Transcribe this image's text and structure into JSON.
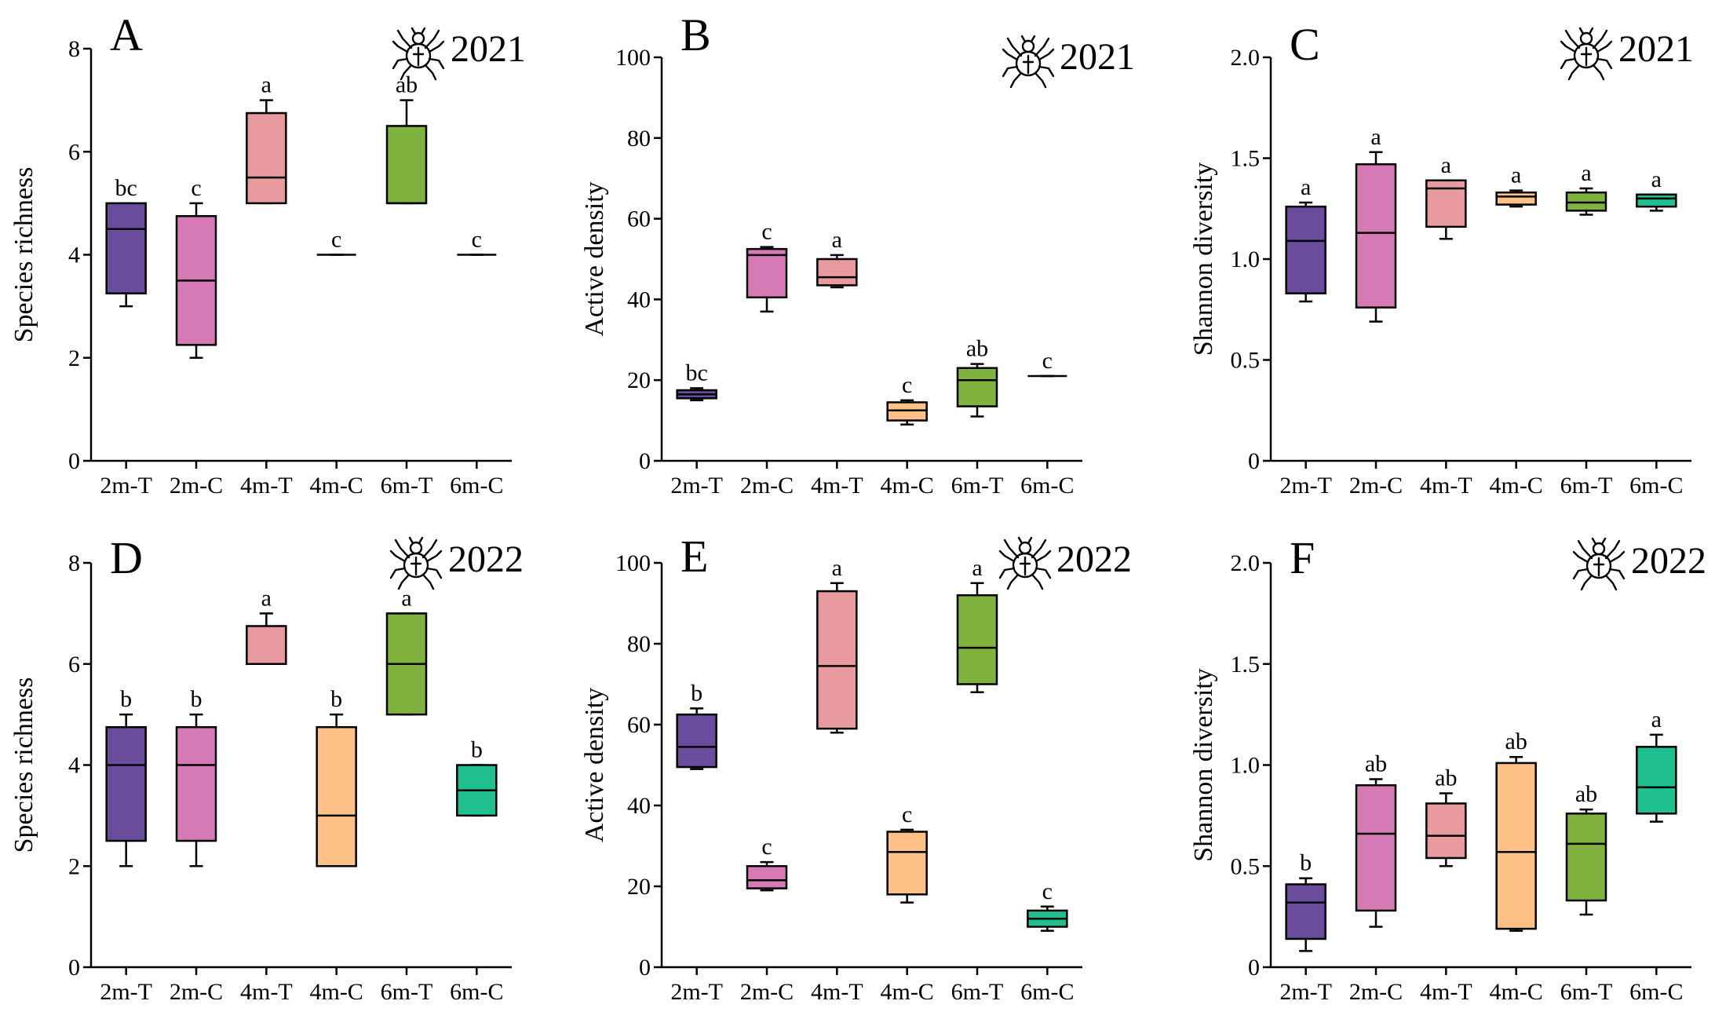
{
  "group_colors": {
    "2m-T": "#6a4c9c",
    "2m-C": "#d57ab4",
    "4m-T": "#e89a9e",
    "4m-C": "#fdc086",
    "6m-T": "#7fb23e",
    "6m-C": "#1fbf8f"
  },
  "icon": "spider-icon",
  "chart_data": [
    {
      "type": "box",
      "panel": "A",
      "year": "2021",
      "ylabel": "Species richness",
      "xlabel": "",
      "ylim": [
        0,
        8
      ],
      "yticks": [
        0,
        2,
        4,
        6,
        8
      ],
      "categories": [
        "2m-T",
        "2m-C",
        "4m-T",
        "4m-C",
        "6m-T",
        "6m-C"
      ],
      "boxes": [
        {
          "min": 3,
          "q1": 3.25,
          "median": 4.5,
          "q3": 5,
          "max": 5,
          "sig": "bc"
        },
        {
          "min": 2,
          "q1": 2.25,
          "median": 3.5,
          "q3": 4.75,
          "max": 5,
          "sig": "c"
        },
        {
          "min": 5,
          "q1": 5,
          "median": 5.5,
          "q3": 6.75,
          "max": 7,
          "sig": "a"
        },
        {
          "min": 4,
          "q1": 4,
          "median": 4,
          "q3": 4,
          "max": 4,
          "sig": "c"
        },
        {
          "min": 5,
          "q1": 5,
          "median": 5,
          "q3": 6.5,
          "max": 7,
          "sig": "ab"
        },
        {
          "min": 4,
          "q1": 4,
          "median": 4,
          "q3": 4,
          "max": 4,
          "sig": "c"
        }
      ]
    },
    {
      "type": "box",
      "panel": "B",
      "year": "2021",
      "ylabel": "Active density",
      "xlabel": "",
      "ylim": [
        0,
        100
      ],
      "yticks": [
        0,
        20,
        40,
        60,
        80,
        100
      ],
      "categories": [
        "2m-T",
        "2m-C",
        "4m-T",
        "4m-C",
        "6m-T",
        "6m-C"
      ],
      "boxes": [
        {
          "min": 15,
          "q1": 15.5,
          "median": 16.5,
          "q3": 17.5,
          "max": 18,
          "sig": "bc"
        },
        {
          "min": 37,
          "q1": 40.5,
          "median": 51,
          "q3": 52.5,
          "max": 53,
          "sig": "c"
        },
        {
          "min": 43,
          "q1": 43.5,
          "median": 45.5,
          "q3": 50,
          "max": 51,
          "sig": "a"
        },
        {
          "min": 9,
          "q1": 10,
          "median": 12.5,
          "q3": 14.5,
          "max": 15,
          "sig": "c"
        },
        {
          "min": 11,
          "q1": 13.5,
          "median": 20,
          "q3": 23,
          "max": 24,
          "sig": "ab"
        },
        {
          "min": 21,
          "q1": 21,
          "median": 21,
          "q3": 21,
          "max": 21,
          "sig": "c"
        }
      ]
    },
    {
      "type": "box",
      "panel": "C",
      "year": "2021",
      "ylabel": "Shannon diversity",
      "xlabel": "",
      "ylim": [
        0,
        2.0
      ],
      "yticks": [
        "0",
        "0.5",
        "1.0",
        "1.5",
        "2.0"
      ],
      "categories": [
        "2m-T",
        "2m-C",
        "4m-T",
        "4m-C",
        "6m-T",
        "6m-C"
      ],
      "boxes": [
        {
          "min": 0.79,
          "q1": 0.83,
          "median": 1.09,
          "q3": 1.26,
          "max": 1.28,
          "sig": "a"
        },
        {
          "min": 0.69,
          "q1": 0.76,
          "median": 1.13,
          "q3": 1.47,
          "max": 1.53,
          "sig": "a"
        },
        {
          "min": 1.1,
          "q1": 1.16,
          "median": 1.35,
          "q3": 1.39,
          "max": 1.39,
          "sig": "a"
        },
        {
          "min": 1.26,
          "q1": 1.27,
          "median": 1.31,
          "q3": 1.33,
          "max": 1.34,
          "sig": "a"
        },
        {
          "min": 1.22,
          "q1": 1.24,
          "median": 1.28,
          "q3": 1.33,
          "max": 1.35,
          "sig": "a"
        },
        {
          "min": 1.24,
          "q1": 1.26,
          "median": 1.3,
          "q3": 1.32,
          "max": 1.32,
          "sig": "a"
        }
      ]
    },
    {
      "type": "box",
      "panel": "D",
      "year": "2022",
      "ylabel": "Species richness",
      "xlabel": "",
      "ylim": [
        0,
        8
      ],
      "yticks": [
        0,
        2,
        4,
        6,
        8
      ],
      "categories": [
        "2m-T",
        "2m-C",
        "4m-T",
        "4m-C",
        "6m-T",
        "6m-C"
      ],
      "boxes": [
        {
          "min": 2,
          "q1": 2.5,
          "median": 4,
          "q3": 4.75,
          "max": 5,
          "sig": "b"
        },
        {
          "min": 2,
          "q1": 2.5,
          "median": 4,
          "q3": 4.75,
          "max": 5,
          "sig": "b"
        },
        {
          "min": 6,
          "q1": 6,
          "median": 6,
          "q3": 6.75,
          "max": 7,
          "sig": "a"
        },
        {
          "min": 2,
          "q1": 2,
          "median": 3,
          "q3": 4.75,
          "max": 5,
          "sig": "b"
        },
        {
          "min": 5,
          "q1": 5,
          "median": 6,
          "q3": 7,
          "max": 7,
          "sig": "a"
        },
        {
          "min": 3,
          "q1": 3,
          "median": 3.5,
          "q3": 4,
          "max": 4,
          "sig": "b"
        }
      ]
    },
    {
      "type": "box",
      "panel": "E",
      "year": "2022",
      "ylabel": "Active density",
      "xlabel": "",
      "ylim": [
        0,
        100
      ],
      "yticks": [
        0,
        20,
        40,
        60,
        80,
        100
      ],
      "categories": [
        "2m-T",
        "2m-C",
        "4m-T",
        "4m-C",
        "6m-T",
        "6m-C"
      ],
      "boxes": [
        {
          "min": 49,
          "q1": 49.5,
          "median": 54.5,
          "q3": 62.5,
          "max": 64,
          "sig": "b"
        },
        {
          "min": 19,
          "q1": 19.5,
          "median": 21.5,
          "q3": 25,
          "max": 26,
          "sig": "c"
        },
        {
          "min": 58,
          "q1": 59,
          "median": 74.5,
          "q3": 93,
          "max": 95,
          "sig": "a"
        },
        {
          "min": 16,
          "q1": 18,
          "median": 28.5,
          "q3": 33.5,
          "max": 34,
          "sig": "c"
        },
        {
          "min": 68,
          "q1": 70,
          "median": 79,
          "q3": 92,
          "max": 95,
          "sig": "a"
        },
        {
          "min": 9,
          "q1": 10,
          "median": 12,
          "q3": 14,
          "max": 15,
          "sig": "c"
        }
      ]
    },
    {
      "type": "box",
      "panel": "F",
      "year": "2022",
      "ylabel": "Shannon diversity",
      "xlabel": "",
      "ylim": [
        0,
        2.0
      ],
      "yticks": [
        "0",
        "0.5",
        "1.0",
        "1.5",
        "2.0"
      ],
      "categories": [
        "2m-T",
        "2m-C",
        "4m-T",
        "4m-C",
        "6m-T",
        "6m-C"
      ],
      "boxes": [
        {
          "min": 0.08,
          "q1": 0.14,
          "median": 0.32,
          "q3": 0.41,
          "max": 0.44,
          "sig": "b"
        },
        {
          "min": 0.2,
          "q1": 0.28,
          "median": 0.66,
          "q3": 0.9,
          "max": 0.93,
          "sig": "ab"
        },
        {
          "min": 0.5,
          "q1": 0.54,
          "median": 0.65,
          "q3": 0.81,
          "max": 0.86,
          "sig": "ab"
        },
        {
          "min": 0.18,
          "q1": 0.19,
          "median": 0.57,
          "q3": 1.01,
          "max": 1.04,
          "sig": "ab"
        },
        {
          "min": 0.26,
          "q1": 0.33,
          "median": 0.61,
          "q3": 0.76,
          "max": 0.78,
          "sig": "ab"
        },
        {
          "min": 0.72,
          "q1": 0.76,
          "median": 0.89,
          "q3": 1.09,
          "max": 1.15,
          "sig": "a"
        }
      ]
    }
  ]
}
